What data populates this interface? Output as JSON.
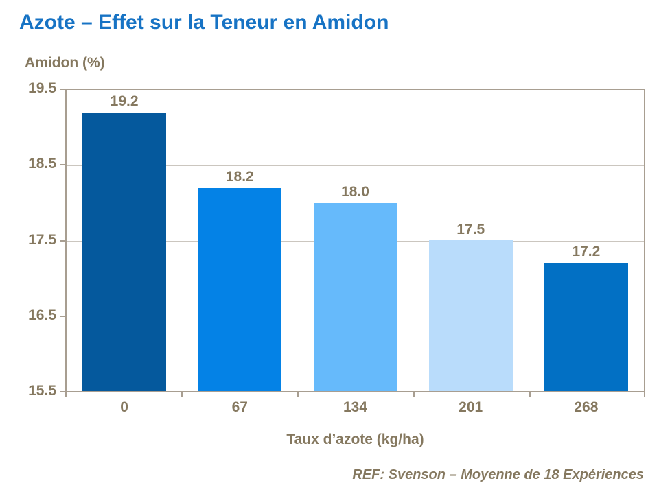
{
  "page": {
    "title": "Azote – Effet sur la Teneur en Amidon",
    "reference": "REF: Svenson – Moyenne de 18 Expériences"
  },
  "chart_data": {
    "type": "bar",
    "title": "Azote – Effet sur la Teneur en Amidon",
    "y_axis_label": "Amidon (%)",
    "xlabel": "Taux d’azote (kg/ha)",
    "ylabel": "Amidon (%)",
    "categories": [
      "0",
      "67",
      "134",
      "201",
      "268"
    ],
    "values": [
      19.2,
      18.2,
      18.0,
      17.5,
      17.2
    ],
    "data_labels": [
      "19.2",
      "18.2",
      "18.0",
      "17.5",
      "17.2"
    ],
    "bar_colors": [
      "#05599D",
      "#0482E6",
      "#66BAFB",
      "#B9DCFB",
      "#0270C4"
    ],
    "ylim": [
      15.5,
      19.5
    ],
    "y_ticks": [
      "19.5",
      "18.5",
      "17.5",
      "16.5",
      "15.5"
    ],
    "grid": true,
    "legend": false,
    "annotation": "REF: Svenson – Moyenne de 18 Expériences"
  },
  "colors": {
    "title_blue": "#1773C4",
    "label_brown": "#85785F",
    "plot_border": "#A89E91",
    "gridline": "#CBC6BF"
  }
}
